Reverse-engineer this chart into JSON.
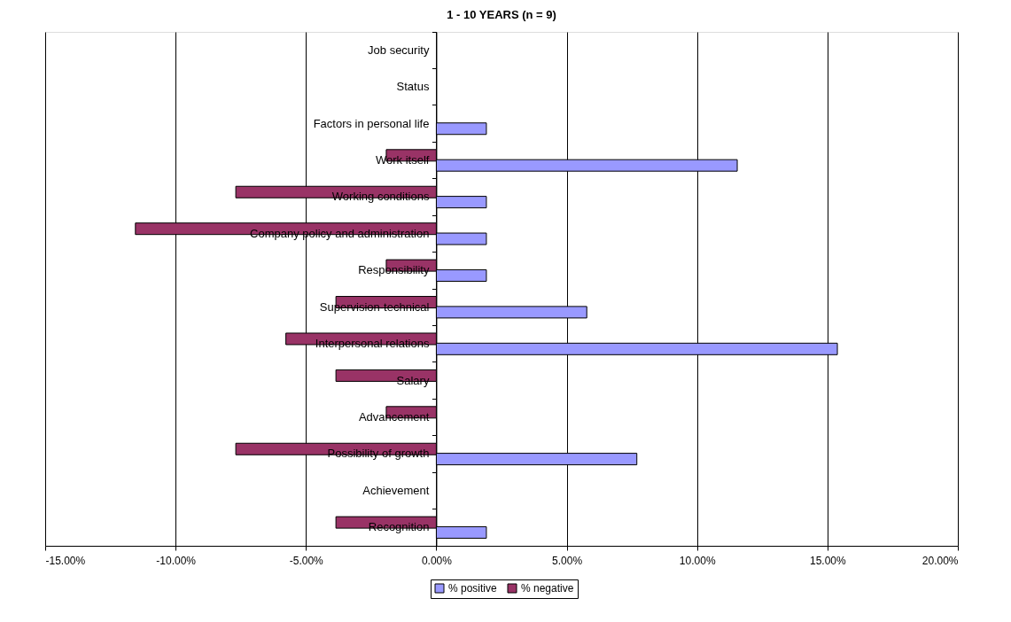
{
  "chart_data": {
    "type": "bar",
    "orientation": "horizontal",
    "title": "1 - 10 YEARS (n = 9)",
    "categories": [
      "Job security",
      "Status",
      "Factors in personal life",
      "Work itself",
      "Working conditions",
      "Company policy and administration",
      "Responsibility",
      "Supervision-technical",
      "Interpersonal relations",
      "Salary",
      "Advancement",
      "Possibility of growth",
      "Achievement",
      "Recognition"
    ],
    "series": [
      {
        "name": "% negative",
        "color": "#993366",
        "values": [
          null,
          null,
          null,
          -1.92,
          -7.69,
          -11.54,
          -1.92,
          -3.85,
          -5.77,
          -3.85,
          -1.92,
          -7.69,
          null,
          -3.85
        ]
      },
      {
        "name": "% positive",
        "color": "#9999ff",
        "values": [
          null,
          null,
          1.92,
          11.54,
          1.92,
          1.92,
          1.92,
          5.77,
          15.38,
          null,
          null,
          7.69,
          null,
          1.92
        ]
      }
    ],
    "xlim": [
      -15,
      20
    ],
    "xticks": [
      {
        "value": -15,
        "label": "-15.00%"
      },
      {
        "value": -10,
        "label": "-10.00%"
      },
      {
        "value": -5,
        "label": "-5.00%"
      },
      {
        "value": 0,
        "label": "0.00%"
      },
      {
        "value": 5,
        "label": "5.00%"
      },
      {
        "value": 10,
        "label": "10.00%"
      },
      {
        "value": 15,
        "label": "15.00%"
      },
      {
        "value": 20,
        "label": "20.00%"
      }
    ],
    "grid": "x",
    "legend": "bottom"
  }
}
